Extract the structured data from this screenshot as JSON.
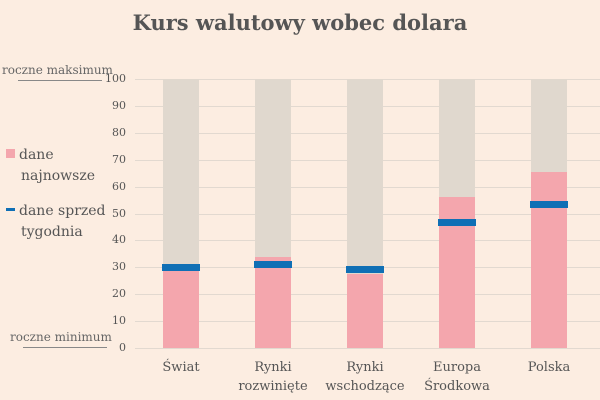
{
  "title": "Kurs walutowy wobec dolara",
  "annotations": {
    "top": "roczne maksimum",
    "bottom": "roczne minimum"
  },
  "legend": {
    "latest_line1": "dane",
    "latest_line2": "najnowsze",
    "prev_line1": "dane sprzed",
    "prev_line2": "tygodnia"
  },
  "colors": {
    "latest": "#f4a6ad",
    "previous": "#0f6fb5",
    "range": "#e0d8ce",
    "background": "#fcede1"
  },
  "chart_data": {
    "type": "bar",
    "title": "Kurs walutowy wobec dolara",
    "xlabel": "",
    "ylabel": "",
    "ylim": [
      0,
      100
    ],
    "yticks": [
      0,
      10,
      20,
      30,
      40,
      50,
      60,
      70,
      80,
      90,
      100
    ],
    "ytick_labels": [
      "0",
      "10",
      "20",
      "30",
      "40",
      "50",
      "60",
      "70",
      "80",
      "90",
      "100"
    ],
    "grid": true,
    "legend_position": "left",
    "y_annotations": {
      "100": "roczne maksimum",
      "0": "roczne minimum"
    },
    "categories": [
      "Świat",
      "Rynki rozwinięte",
      "Rynki wschodzące",
      "Europa Środkowa",
      "Polska"
    ],
    "category_lines": [
      [
        "Świat"
      ],
      [
        "Rynki",
        "rozwinięte"
      ],
      [
        "Rynki",
        "wschodzące"
      ],
      [
        "Europa",
        "Środkowa"
      ],
      [
        "Polska"
      ]
    ],
    "series": [
      {
        "name": "dane najnowsze",
        "kind": "bar",
        "values": [
          31,
          34,
          27.5,
          56,
          65.5
        ]
      },
      {
        "name": "dane sprzed tygodnia",
        "kind": "marker",
        "values": [
          30,
          31,
          29,
          46.5,
          53.5
        ]
      }
    ]
  }
}
